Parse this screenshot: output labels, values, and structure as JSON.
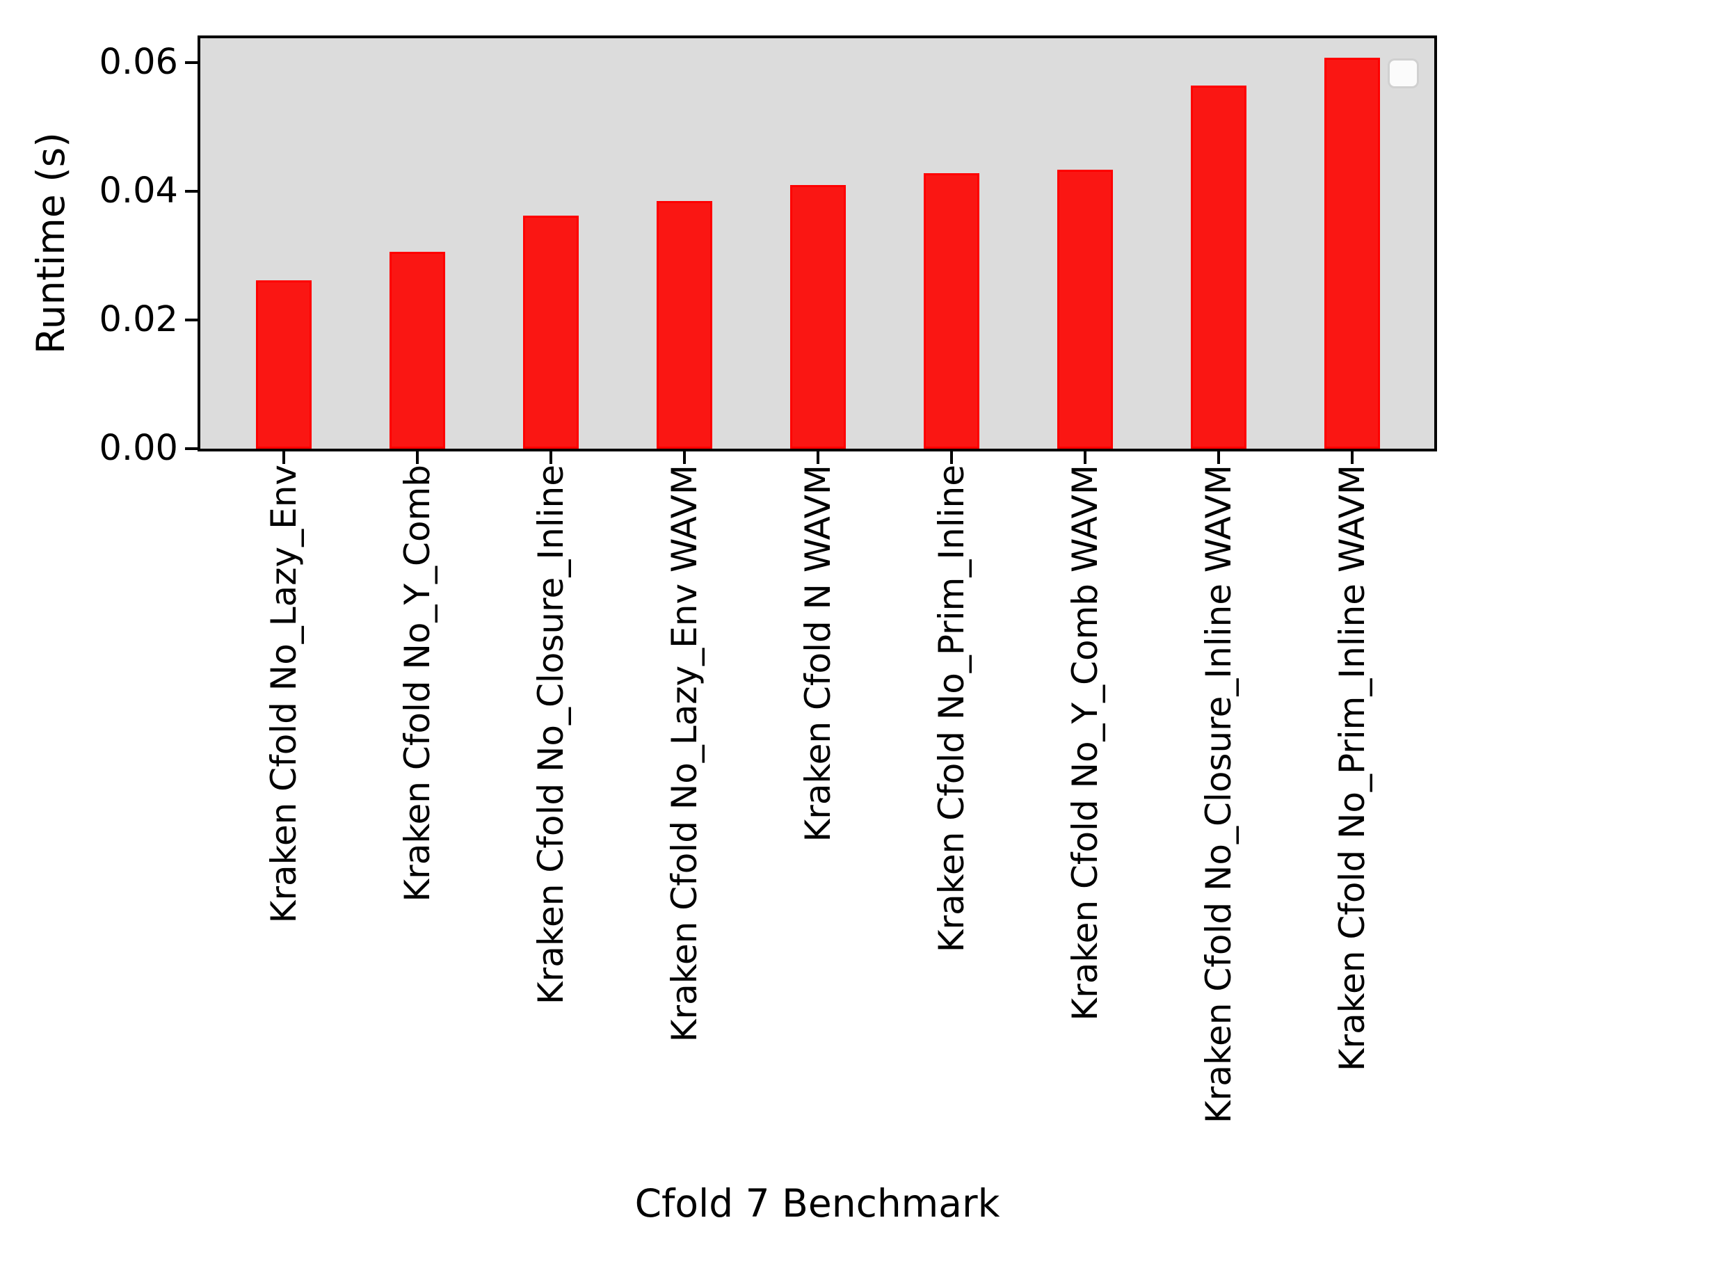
{
  "figure": {
    "background": "#ffffff",
    "plot_background": "#dcdcdc",
    "spine_color": "#000000"
  },
  "chart_data": {
    "type": "bar",
    "title": "",
    "xlabel": "Cfold 7 Benchmark",
    "ylabel": "Runtime (s)",
    "categories": [
      "Kraken Cfold No_Lazy_Env",
      "Kraken Cfold No_Y_Comb",
      "Kraken Cfold No_Closure_Inline",
      "Kraken Cfold No_Lazy_Env WAVM",
      "Kraken Cfold N WAVM",
      "Kraken Cfold No_Prim_Inline",
      "Kraken Cfold No_Y_Comb WAVM",
      "Kraken Cfold No_Closure_Inline WAVM",
      "Kraken Cfold No_Prim_Inline WAVM"
    ],
    "values": [
      0.0262,
      0.0306,
      0.0362,
      0.0385,
      0.041,
      0.0428,
      0.0434,
      0.0564,
      0.0608
    ],
    "yticks": [
      0.0,
      0.02,
      0.04,
      0.06
    ],
    "ytick_labels": [
      "0.00",
      "0.02",
      "0.04",
      "0.06"
    ],
    "ylim": [
      0,
      0.0638
    ],
    "xtick_rotation": 90,
    "grid": false,
    "bar_color": "#fa1613",
    "bar_edge_color": "#fe0000",
    "legend": {
      "visible": true,
      "entries": [],
      "position": "upper right"
    }
  }
}
